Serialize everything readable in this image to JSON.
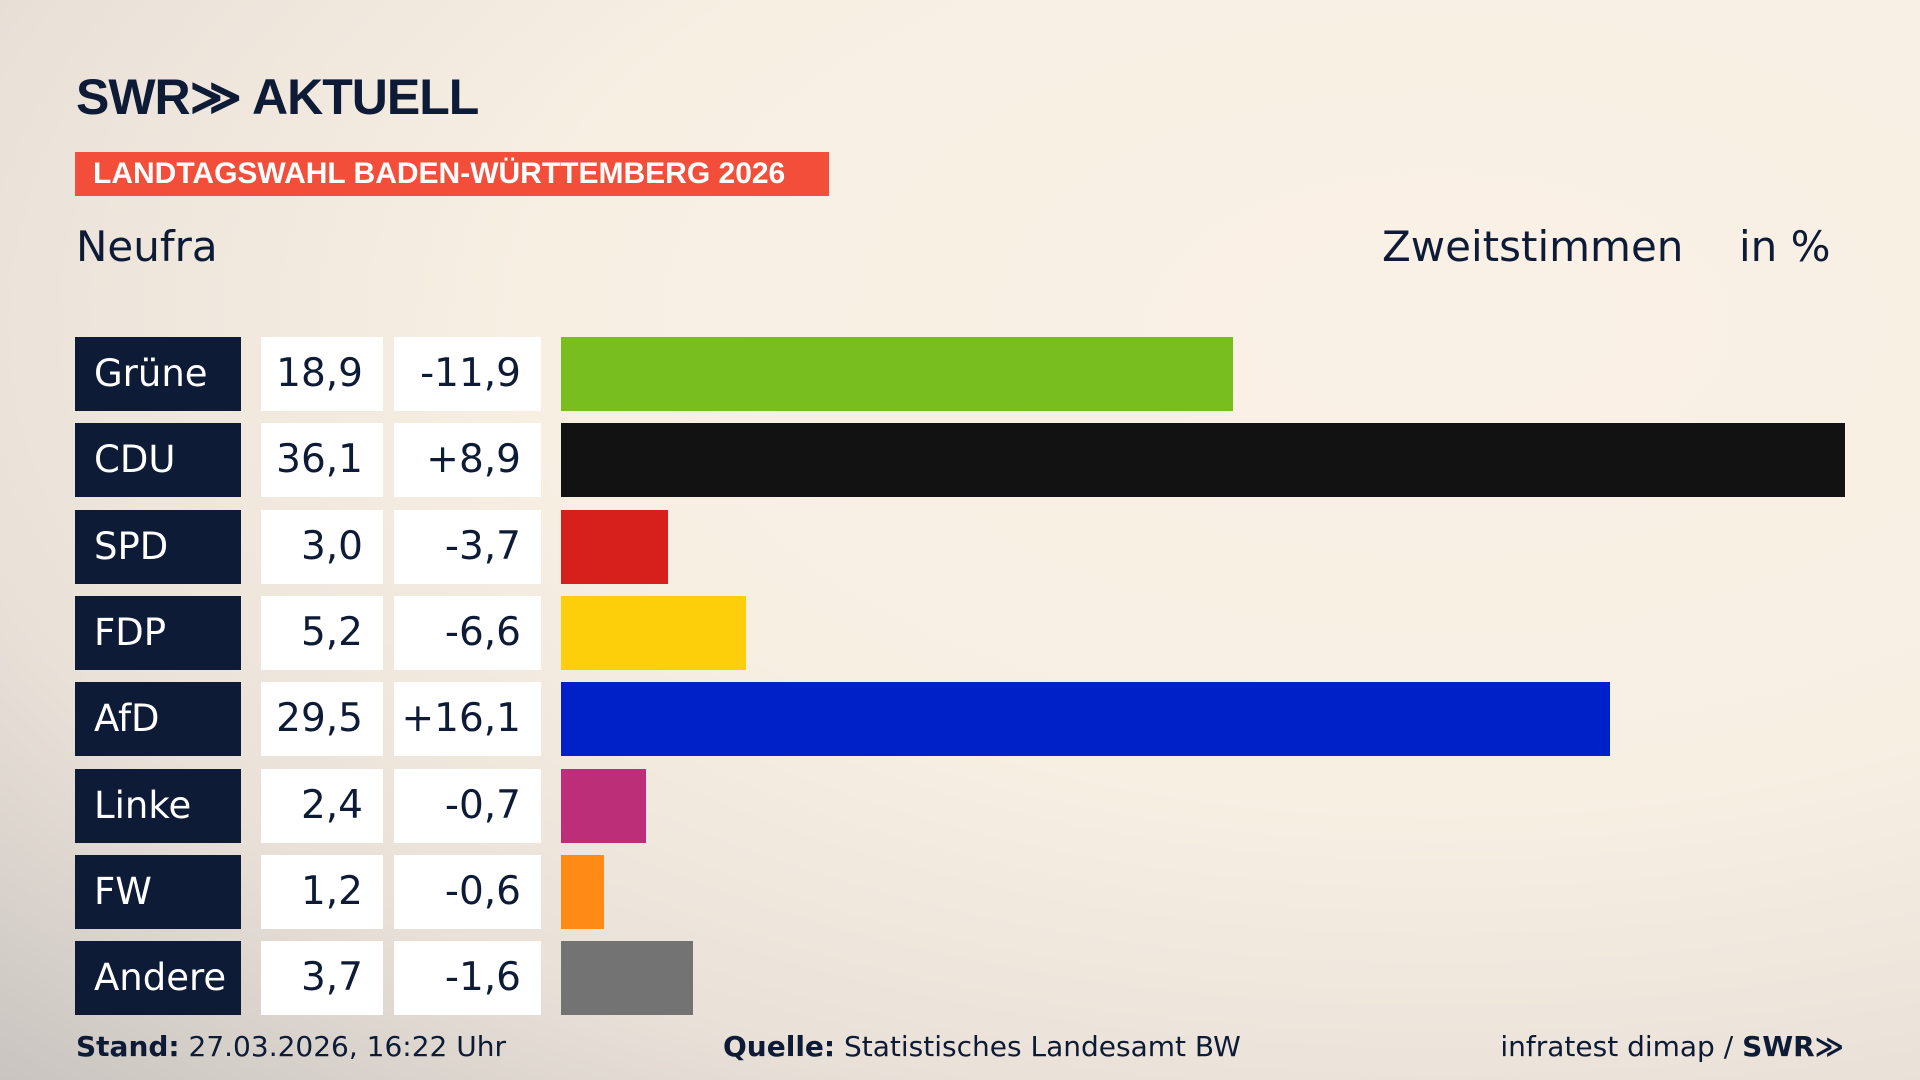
{
  "header": {
    "logo": "SWR≫ AKTUELL",
    "banner": "LANDTAGSWAHL BADEN-WÜRTTEMBERG 2026",
    "place": "Neufra",
    "measure": "Zweitstimmen",
    "unit": "in %"
  },
  "chart_data": {
    "type": "bar",
    "orientation": "horizontal",
    "categories": [
      "Grüne",
      "CDU",
      "SPD",
      "FDP",
      "AfD",
      "Linke",
      "FW",
      "Andere"
    ],
    "values": [
      18.9,
      36.1,
      3.0,
      5.2,
      29.5,
      2.4,
      1.2,
      3.7
    ],
    "values_label": [
      "18,9",
      "36,1",
      "3,0",
      "5,2",
      "29,5",
      "2,4",
      "1,2",
      "3,7"
    ],
    "diff": [
      "-11,9",
      "+8,9",
      "-3,7",
      "-6,6",
      "+16,1",
      "-0,7",
      "-0,6",
      "-1,6"
    ],
    "colors": [
      "#78be1e",
      "#121212",
      "#d7201c",
      "#fdcf0a",
      "#0021c7",
      "#bc2f78",
      "#ff8a15",
      "#737373"
    ],
    "xlim": [
      0,
      36.1
    ]
  },
  "footer": {
    "stand_label": "Stand:",
    "stand_value": "27.03.2026, 16:22 Uhr",
    "source_label": "Quelle:",
    "source_value": "Statistisches Landesamt BW",
    "credit": "infratest dimap / ",
    "credit_logo": "SWR≫"
  }
}
